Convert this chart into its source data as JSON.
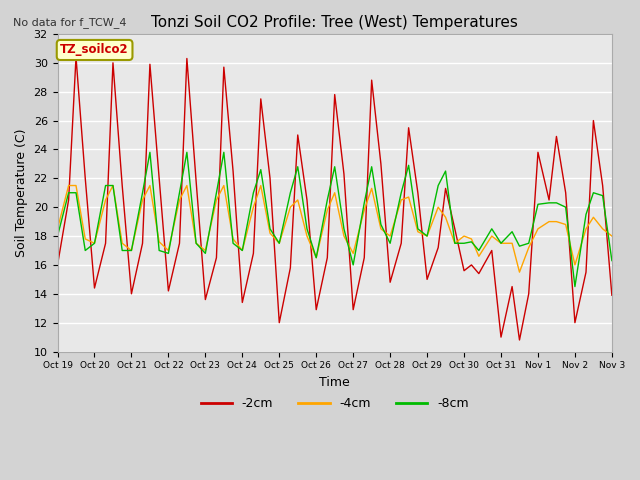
{
  "title": "Tonzi Soil CO2 Profile: Tree (West) Temperatures",
  "subtitle": "No data for f_TCW_4",
  "xlabel": "Time",
  "ylabel": "Soil Temperature (C)",
  "ylim": [
    10,
    32
  ],
  "yticks": [
    10,
    12,
    14,
    16,
    18,
    20,
    22,
    24,
    26,
    28,
    30,
    32
  ],
  "fig_bg_color": "#d3d3d3",
  "plot_bg_color": "#e8e8e8",
  "line_colors": {
    "-2cm": "#cc0000",
    "-4cm": "#ffa500",
    "-8cm": "#00bb00"
  },
  "legend_label": "TZ_soilco2",
  "x_tick_labels": [
    "Oct 19",
    "Oct 20",
    "Oct 21",
    "Oct 22",
    "Oct 23",
    "Oct 24",
    "Oct 25",
    "Oct 26",
    "Oct 27",
    "Oct 28",
    "Oct 29",
    "Oct 30",
    "Oct 31",
    "Nov 1",
    "Nov 2",
    "Nov 3"
  ],
  "series_2cm_x": [
    0.0,
    0.3,
    0.5,
    0.75,
    1.0,
    1.3,
    1.5,
    1.75,
    2.0,
    2.3,
    2.5,
    2.75,
    3.0,
    3.3,
    3.5,
    3.75,
    4.0,
    4.3,
    4.5,
    4.75,
    5.0,
    5.3,
    5.5,
    5.75,
    6.0,
    6.3,
    6.5,
    6.75,
    7.0,
    7.3,
    7.5,
    7.75,
    8.0,
    8.3,
    8.5,
    8.75,
    9.0,
    9.3,
    9.5,
    9.75,
    10.0,
    10.3,
    10.5,
    10.75,
    11.0,
    11.2,
    11.4,
    11.75,
    12.0,
    12.3,
    12.5,
    12.75,
    13.0,
    13.3,
    13.5,
    13.75,
    14.0,
    14.3,
    14.5,
    14.75,
    15.0
  ],
  "series_2cm_y": [
    16.0,
    20.5,
    30.4,
    22.0,
    14.4,
    17.5,
    30.0,
    21.5,
    14.0,
    17.5,
    29.9,
    22.0,
    14.2,
    17.5,
    30.3,
    21.8,
    13.6,
    16.5,
    29.7,
    22.5,
    13.4,
    16.8,
    27.5,
    22.0,
    12.0,
    15.8,
    25.0,
    20.5,
    12.9,
    16.5,
    27.8,
    22.3,
    12.9,
    16.5,
    28.8,
    23.0,
    14.8,
    17.5,
    25.5,
    21.0,
    15.0,
    17.2,
    21.3,
    18.5,
    15.6,
    16.0,
    15.4,
    17.0,
    11.0,
    14.5,
    10.8,
    14.0,
    23.8,
    20.5,
    24.9,
    21.0,
    12.0,
    15.5,
    26.0,
    21.5,
    13.9
  ],
  "series_4cm_x": [
    0.0,
    0.3,
    0.5,
    0.75,
    1.0,
    1.3,
    1.5,
    1.75,
    2.0,
    2.3,
    2.5,
    2.75,
    3.0,
    3.3,
    3.5,
    3.75,
    4.0,
    4.3,
    4.5,
    4.75,
    5.0,
    5.3,
    5.5,
    5.75,
    6.0,
    6.3,
    6.5,
    6.75,
    7.0,
    7.3,
    7.5,
    7.75,
    8.0,
    8.3,
    8.5,
    8.75,
    9.0,
    9.3,
    9.5,
    9.75,
    10.0,
    10.3,
    10.5,
    10.75,
    11.0,
    11.2,
    11.4,
    11.75,
    12.0,
    12.3,
    12.5,
    12.75,
    13.0,
    13.3,
    13.5,
    13.75,
    14.0,
    14.3,
    14.5,
    14.75,
    15.0
  ],
  "series_4cm_y": [
    18.5,
    21.5,
    21.5,
    17.8,
    17.5,
    20.5,
    21.5,
    17.5,
    17.0,
    20.5,
    21.5,
    17.6,
    17.0,
    20.5,
    21.5,
    17.5,
    17.0,
    20.5,
    21.5,
    17.8,
    17.0,
    20.0,
    21.5,
    18.2,
    17.5,
    20.0,
    20.5,
    18.0,
    16.5,
    19.8,
    21.0,
    18.0,
    16.8,
    19.8,
    21.3,
    18.5,
    18.0,
    20.5,
    20.7,
    18.3,
    18.0,
    20.0,
    19.3,
    17.5,
    18.0,
    17.8,
    16.6,
    18.0,
    17.5,
    17.5,
    15.5,
    17.2,
    18.5,
    19.0,
    19.0,
    18.8,
    16.0,
    18.5,
    19.3,
    18.5,
    18.0
  ],
  "series_8cm_x": [
    0.0,
    0.3,
    0.5,
    0.75,
    1.0,
    1.3,
    1.5,
    1.75,
    2.0,
    2.3,
    2.5,
    2.75,
    3.0,
    3.3,
    3.5,
    3.75,
    4.0,
    4.3,
    4.5,
    4.75,
    5.0,
    5.3,
    5.5,
    5.75,
    6.0,
    6.3,
    6.5,
    6.75,
    7.0,
    7.3,
    7.5,
    7.75,
    8.0,
    8.3,
    8.5,
    8.75,
    9.0,
    9.3,
    9.5,
    9.75,
    10.0,
    10.3,
    10.5,
    10.75,
    11.0,
    11.2,
    11.4,
    11.75,
    12.0,
    12.3,
    12.5,
    12.75,
    13.0,
    13.3,
    13.5,
    13.75,
    14.0,
    14.3,
    14.5,
    14.75,
    15.0
  ],
  "series_8cm_y": [
    18.0,
    21.0,
    21.0,
    17.0,
    17.5,
    21.5,
    21.5,
    17.0,
    17.0,
    21.0,
    23.8,
    17.0,
    16.8,
    21.0,
    23.8,
    17.5,
    16.8,
    21.0,
    23.8,
    17.5,
    17.0,
    21.0,
    22.6,
    18.5,
    17.5,
    21.0,
    22.8,
    18.5,
    16.5,
    20.5,
    22.8,
    18.5,
    16.0,
    20.3,
    22.8,
    18.8,
    17.5,
    21.0,
    22.9,
    18.5,
    18.0,
    21.5,
    22.5,
    17.5,
    17.5,
    17.6,
    17.0,
    18.5,
    17.5,
    18.3,
    17.3,
    17.5,
    20.2,
    20.3,
    20.3,
    20.0,
    14.5,
    19.5,
    21.0,
    20.8,
    16.3
  ]
}
